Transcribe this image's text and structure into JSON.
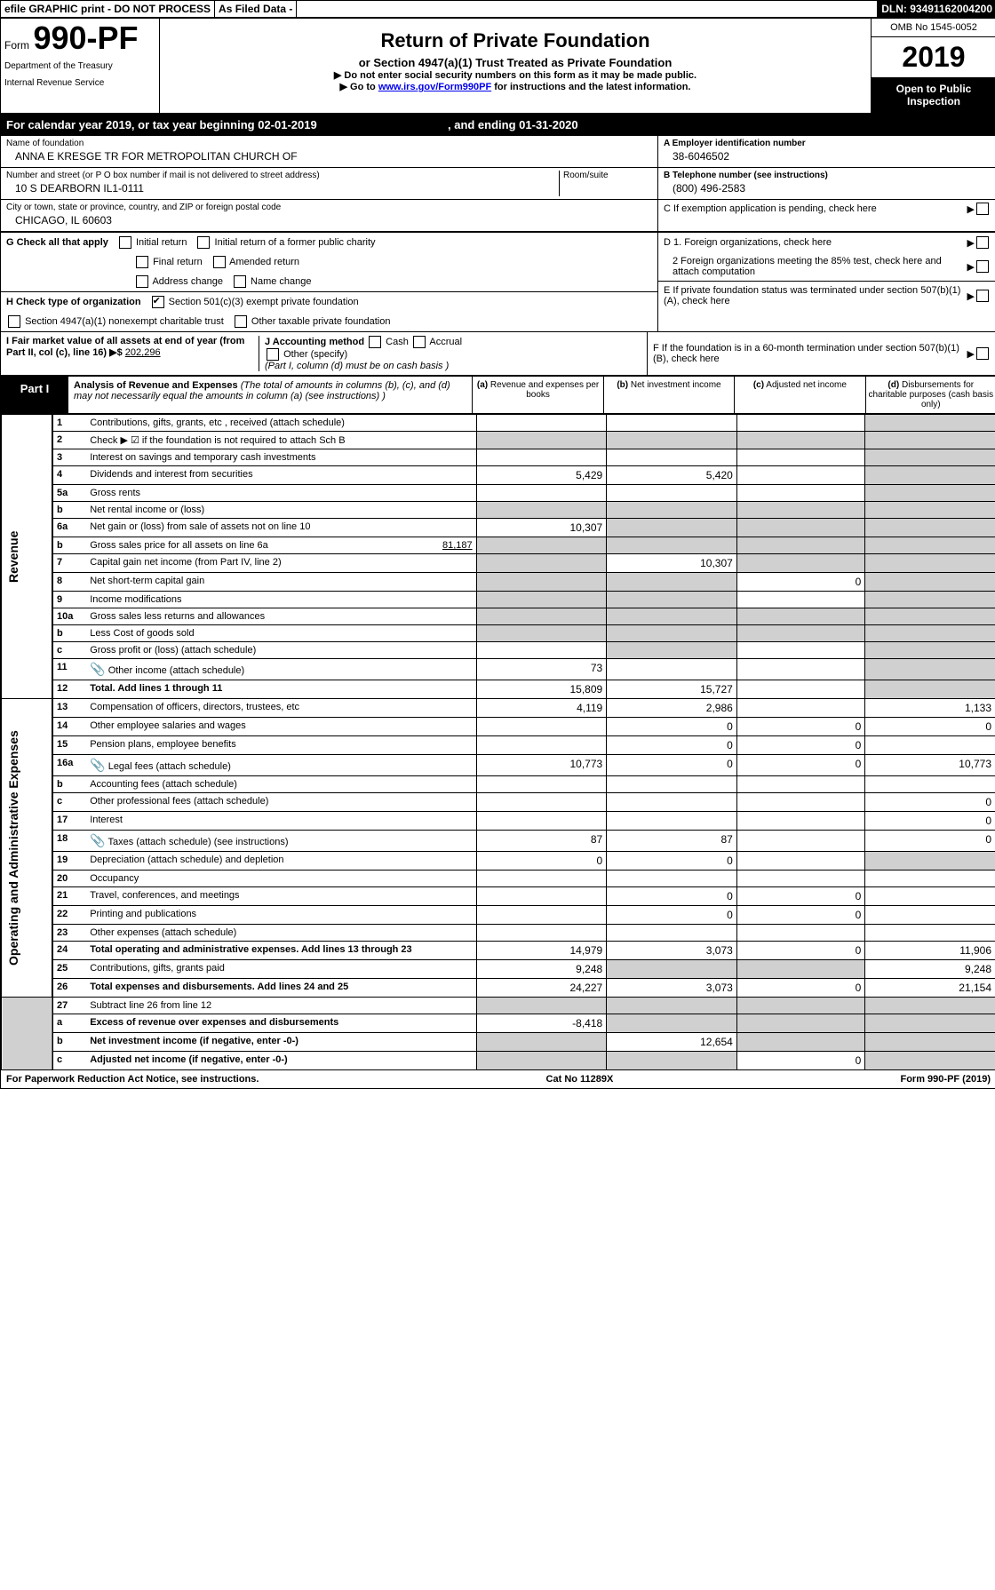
{
  "top": {
    "efile": "efile GRAPHIC print - DO NOT PROCESS",
    "asfiled": "As Filed Data -",
    "dln": "DLN: 93491162004200"
  },
  "header": {
    "form_prefix": "Form",
    "form_num": "990-PF",
    "dept1": "Department of the Treasury",
    "dept2": "Internal Revenue Service",
    "title": "Return of Private Foundation",
    "subtitle": "or Section 4947(a)(1) Trust Treated as Private Foundation",
    "note1": "▶ Do not enter social security numbers on this form as it may be made public.",
    "note2_pre": "▶ Go to ",
    "note2_link": "www.irs.gov/Form990PF",
    "note2_post": " for instructions and the latest information.",
    "omb": "OMB No 1545-0052",
    "year": "2019",
    "open": "Open to Public Inspection"
  },
  "calyear": {
    "text1": "For calendar year 2019, or tax year beginning 02-01-2019",
    "text2": ", and ending 01-31-2020"
  },
  "info": {
    "name_label": "Name of foundation",
    "name": "ANNA E KRESGE TR FOR METROPOLITAN CHURCH OF",
    "street_label": "Number and street (or P O  box number if mail is not delivered to street address)",
    "street": "10 S DEARBORN IL1-0111",
    "room_label": "Room/suite",
    "city_label": "City or town, state or province, country, and ZIP or foreign postal code",
    "city": "CHICAGO, IL  60603",
    "a_label": "A Employer identification number",
    "a_value": "38-6046502",
    "b_label": "B Telephone number (see instructions)",
    "b_value": "(800) 496-2583",
    "c_label": "C If exemption application is pending, check here",
    "d1": "D 1. Foreign organizations, check here",
    "d2": "2 Foreign organizations meeting the 85% test, check here and attach computation",
    "e": "E  If private foundation status was terminated under section 507(b)(1)(A), check here",
    "f": "F  If the foundation is in a 60-month termination under section 507(b)(1)(B), check here"
  },
  "g": {
    "label": "G Check all that apply",
    "initial": "Initial return",
    "initial_former": "Initial return of a former public charity",
    "final": "Final return",
    "amended": "Amended return",
    "addr": "Address change",
    "name": "Name change"
  },
  "h": {
    "label": "H Check type of organization",
    "opt1": "Section 501(c)(3) exempt private foundation",
    "opt2": "Section 4947(a)(1) nonexempt charitable trust",
    "opt3": "Other taxable private foundation"
  },
  "i": {
    "label": "I Fair market value of all assets at end of year (from Part II, col  (c), line 16)",
    "arrow": "▶$",
    "value": "202,296"
  },
  "j": {
    "label": "J Accounting method",
    "cash": "Cash",
    "accrual": "Accrual",
    "other": "Other (specify)",
    "note": "(Part I, column (d) must be on cash basis )"
  },
  "part1": {
    "label": "Part I",
    "title": "Analysis of Revenue and Expenses",
    "title_note": " (The total of amounts in columns (b), (c), and (d) may not necessarily equal the amounts in column (a) (see instructions) )",
    "col_a": "(a) Revenue and expenses per books",
    "col_b": "(b) Net investment income",
    "col_c": "(c) Adjusted net income",
    "col_d": "(d) Disbursements for charitable purposes (cash basis only)"
  },
  "sections": {
    "revenue": "Revenue",
    "expenses": "Operating and Administrative Expenses"
  },
  "rows": [
    {
      "n": "1",
      "t": "Contributions, gifts, grants, etc , received (attach schedule)",
      "a": "",
      "b": "",
      "c": "",
      "d": "",
      "greyD": true
    },
    {
      "n": "2",
      "t": "Check ▶ ☑ if the foundation is not required to attach Sch B",
      "a": "",
      "b": "",
      "c": "",
      "d": "",
      "greyA": true,
      "greyB": true,
      "greyC": true,
      "greyD": true,
      "bold_not": true
    },
    {
      "n": "3",
      "t": "Interest on savings and temporary cash investments",
      "a": "",
      "b": "",
      "c": "",
      "d": "",
      "greyD": true
    },
    {
      "n": "4",
      "t": "Dividends and interest from securities",
      "a": "5,429",
      "b": "5,420",
      "c": "",
      "d": "",
      "greyD": true
    },
    {
      "n": "5a",
      "t": "Gross rents",
      "a": "",
      "b": "",
      "c": "",
      "d": "",
      "greyD": true
    },
    {
      "n": "b",
      "t": "Net rental income or (loss)",
      "a": "",
      "b": "",
      "c": "",
      "d": "",
      "greyA": true,
      "greyB": true,
      "greyC": true,
      "greyD": true
    },
    {
      "n": "6a",
      "t": "Net gain or (loss) from sale of assets not on line 10",
      "a": "10,307",
      "b": "",
      "c": "",
      "d": "",
      "greyB": true,
      "greyC": true,
      "greyD": true
    },
    {
      "n": "b",
      "t": "Gross sales price for all assets on line 6a",
      "extra": "81,187",
      "a": "",
      "b": "",
      "c": "",
      "d": "",
      "greyA": true,
      "greyB": true,
      "greyC": true,
      "greyD": true
    },
    {
      "n": "7",
      "t": "Capital gain net income (from Part IV, line 2)",
      "a": "",
      "b": "10,307",
      "c": "",
      "d": "",
      "greyA": true,
      "greyC": true,
      "greyD": true
    },
    {
      "n": "8",
      "t": "Net short-term capital gain",
      "a": "",
      "b": "",
      "c": "0",
      "d": "",
      "greyA": true,
      "greyB": true,
      "greyD": true
    },
    {
      "n": "9",
      "t": "Income modifications",
      "a": "",
      "b": "",
      "c": "",
      "d": "",
      "greyA": true,
      "greyB": true,
      "greyD": true
    },
    {
      "n": "10a",
      "t": "Gross sales less returns and allowances",
      "a": "",
      "b": "",
      "c": "",
      "d": "",
      "greyA": true,
      "greyB": true,
      "greyC": true,
      "greyD": true
    },
    {
      "n": "b",
      "t": "Less  Cost of goods sold",
      "a": "",
      "b": "",
      "c": "",
      "d": "",
      "greyA": true,
      "greyB": true,
      "greyC": true,
      "greyD": true
    },
    {
      "n": "c",
      "t": "Gross profit or (loss) (attach schedule)",
      "a": "",
      "b": "",
      "c": "",
      "d": "",
      "greyB": true,
      "greyD": true
    },
    {
      "n": "11",
      "t": "Other income (attach schedule)",
      "a": "73",
      "b": "",
      "c": "",
      "d": "",
      "greyD": true,
      "clip": true
    },
    {
      "n": "12",
      "t": "Total. Add lines 1 through 11",
      "a": "15,809",
      "b": "15,727",
      "c": "",
      "d": "",
      "greyD": true,
      "bold": true
    }
  ],
  "exp_rows": [
    {
      "n": "13",
      "t": "Compensation of officers, directors, trustees, etc",
      "a": "4,119",
      "b": "2,986",
      "c": "",
      "d": "1,133"
    },
    {
      "n": "14",
      "t": "Other employee salaries and wages",
      "a": "",
      "b": "0",
      "c": "0",
      "d": "0"
    },
    {
      "n": "15",
      "t": "Pension plans, employee benefits",
      "a": "",
      "b": "0",
      "c": "0",
      "d": ""
    },
    {
      "n": "16a",
      "t": "Legal fees (attach schedule)",
      "a": "10,773",
      "b": "0",
      "c": "0",
      "d": "10,773",
      "clip": true
    },
    {
      "n": "b",
      "t": "Accounting fees (attach schedule)",
      "a": "",
      "b": "",
      "c": "",
      "d": ""
    },
    {
      "n": "c",
      "t": "Other professional fees (attach schedule)",
      "a": "",
      "b": "",
      "c": "",
      "d": "0"
    },
    {
      "n": "17",
      "t": "Interest",
      "a": "",
      "b": "",
      "c": "",
      "d": "0"
    },
    {
      "n": "18",
      "t": "Taxes (attach schedule) (see instructions)",
      "a": "87",
      "b": "87",
      "c": "",
      "d": "0",
      "clip": true
    },
    {
      "n": "19",
      "t": "Depreciation (attach schedule) and depletion",
      "a": "0",
      "b": "0",
      "c": "",
      "d": "",
      "greyD": true
    },
    {
      "n": "20",
      "t": "Occupancy",
      "a": "",
      "b": "",
      "c": "",
      "d": ""
    },
    {
      "n": "21",
      "t": "Travel, conferences, and meetings",
      "a": "",
      "b": "0",
      "c": "0",
      "d": ""
    },
    {
      "n": "22",
      "t": "Printing and publications",
      "a": "",
      "b": "0",
      "c": "0",
      "d": ""
    },
    {
      "n": "23",
      "t": "Other expenses (attach schedule)",
      "a": "",
      "b": "",
      "c": "",
      "d": ""
    },
    {
      "n": "24",
      "t": "Total operating and administrative expenses. Add lines 13 through 23",
      "a": "14,979",
      "b": "3,073",
      "c": "0",
      "d": "11,906",
      "bold": true
    },
    {
      "n": "25",
      "t": "Contributions, gifts, grants paid",
      "a": "9,248",
      "b": "",
      "c": "",
      "d": "9,248",
      "greyB": true,
      "greyC": true
    },
    {
      "n": "26",
      "t": "Total expenses and disbursements. Add lines 24 and 25",
      "a": "24,227",
      "b": "3,073",
      "c": "0",
      "d": "21,154",
      "bold": true
    }
  ],
  "net_rows": [
    {
      "n": "27",
      "t": "Subtract line 26 from line 12",
      "a": "",
      "b": "",
      "c": "",
      "d": "",
      "greyA": true,
      "greyB": true,
      "greyC": true,
      "greyD": true
    },
    {
      "n": "a",
      "t": "Excess of revenue over expenses and disbursements",
      "a": "-8,418",
      "b": "",
      "c": "",
      "d": "",
      "greyB": true,
      "greyC": true,
      "greyD": true,
      "bold": true
    },
    {
      "n": "b",
      "t": "Net investment income (if negative, enter -0-)",
      "a": "",
      "b": "12,654",
      "c": "",
      "d": "",
      "greyA": true,
      "greyC": true,
      "greyD": true,
      "bold": true
    },
    {
      "n": "c",
      "t": "Adjusted net income (if negative, enter -0-)",
      "a": "",
      "b": "",
      "c": "0",
      "d": "",
      "greyA": true,
      "greyB": true,
      "greyD": true,
      "bold": true
    }
  ],
  "footer": {
    "left": "For Paperwork Reduction Act Notice, see instructions.",
    "mid": "Cat  No  11289X",
    "right": "Form 990-PF (2019)"
  }
}
